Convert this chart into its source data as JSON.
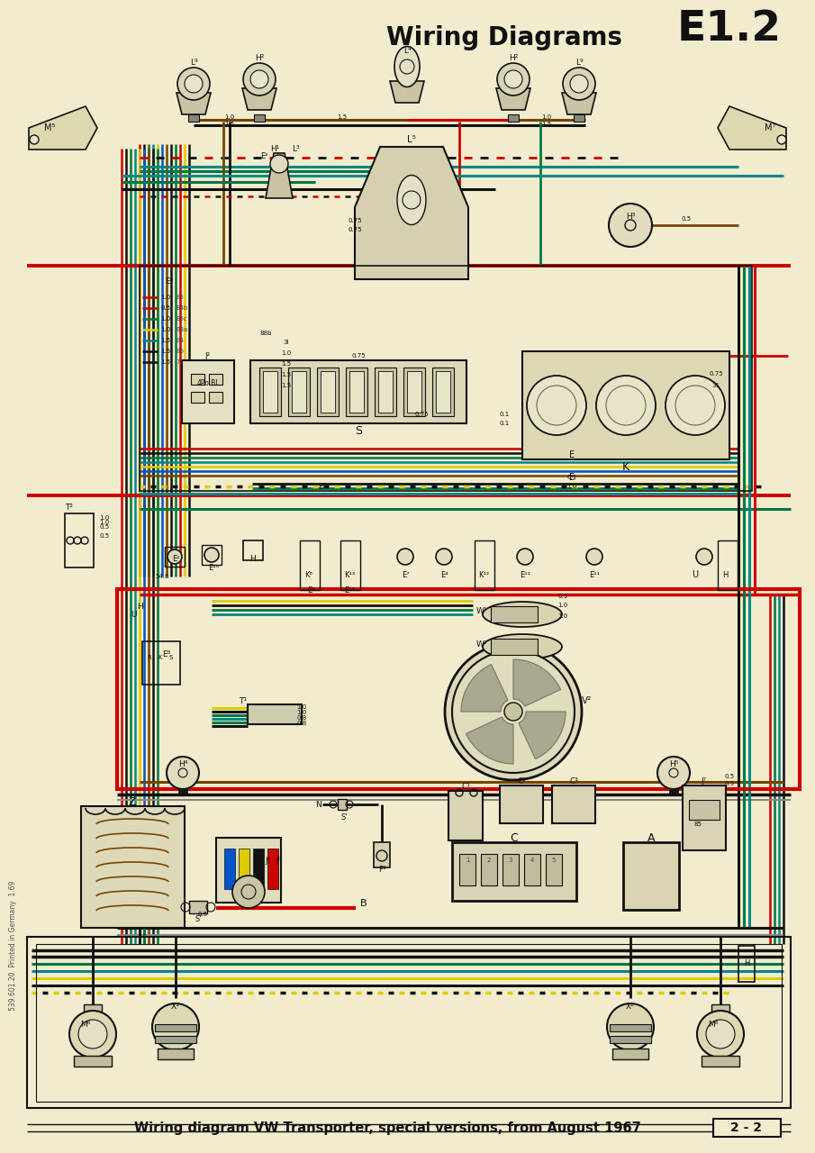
{
  "title": "Wiring Diagrams",
  "title_code": "E1.2",
  "subtitle": "Wiring diagram VW Transporter, special versions, from August 1967",
  "page_num": "2 - 2",
  "print_info": "539.601.20  Printed in Germany  1.69",
  "paper_color": "#f2ecce",
  "wire_colors": {
    "red": "#cc0000",
    "black": "#111111",
    "green": "#007744",
    "teal": "#008888",
    "yellow": "#ddcc00",
    "blue": "#0055cc",
    "brown": "#774400",
    "gray": "#888888",
    "white": "#ddddcc",
    "dk_green": "#005533"
  },
  "title_fontsize": 20,
  "code_fontsize": 34,
  "subtitle_fontsize": 10.5
}
